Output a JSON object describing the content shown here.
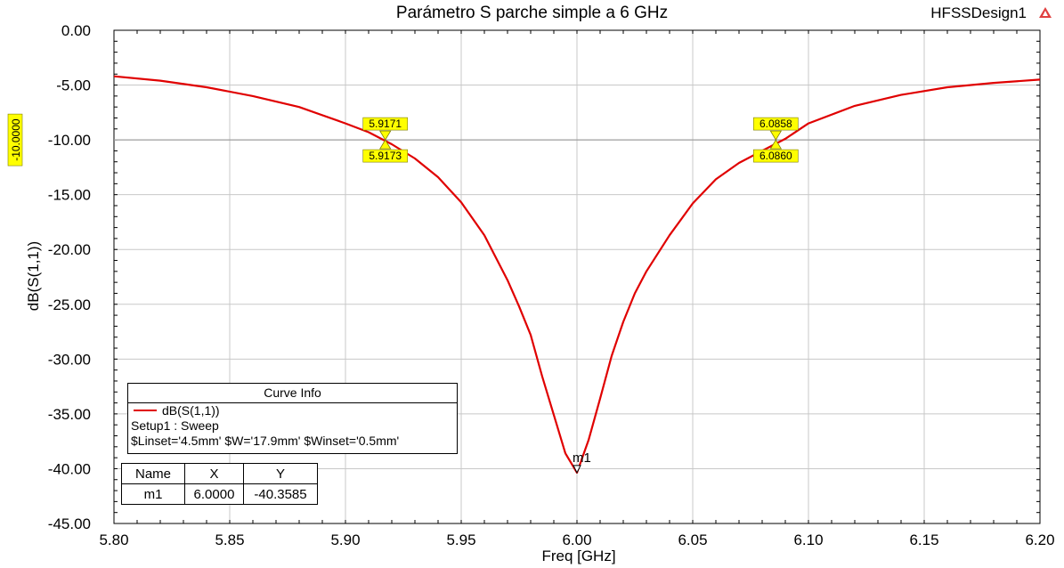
{
  "app_name": "HFSSDesign1",
  "icons": {
    "app": "ansys-logo-icon"
  },
  "colors": {
    "curve": "#e00000",
    "marker_fill": "#ffff00",
    "grid": "#c8c8c8",
    "ref_line": "#a0a0a0"
  },
  "chart_data": {
    "type": "line",
    "title": "Parámetro S parche simple a 6 GHz",
    "xlabel": "Freq [GHz]",
    "ylabel": "dB(S(1,1))",
    "xlim": [
      5.8,
      6.2
    ],
    "ylim": [
      -45,
      0
    ],
    "grid": true,
    "x_ticks": [
      "5.80",
      "5.85",
      "5.90",
      "5.95",
      "6.00",
      "6.05",
      "6.10",
      "6.15",
      "6.20"
    ],
    "y_ticks": [
      "0.00",
      "-5.00",
      "-10.00",
      "-15.00",
      "-20.00",
      "-25.00",
      "-30.00",
      "-35.00",
      "-40.00",
      "-45.00"
    ],
    "series": [
      {
        "name": "dB(S(1,1))",
        "x": [
          5.8,
          5.82,
          5.84,
          5.86,
          5.88,
          5.9,
          5.91,
          5.92,
          5.93,
          5.94,
          5.95,
          5.96,
          5.97,
          5.975,
          5.98,
          5.985,
          5.99,
          5.995,
          6.0,
          6.005,
          6.01,
          6.015,
          6.02,
          6.025,
          6.03,
          6.04,
          6.05,
          6.06,
          6.07,
          6.08,
          6.09,
          6.1,
          6.12,
          6.14,
          6.16,
          6.18,
          6.2
        ],
        "y": [
          -4.2,
          -4.6,
          -5.2,
          -6.0,
          -7.0,
          -8.5,
          -9.3,
          -10.4,
          -11.7,
          -13.4,
          -15.7,
          -18.7,
          -22.8,
          -25.2,
          -27.8,
          -31.6,
          -35.1,
          -38.6,
          -40.36,
          -37.4,
          -33.6,
          -29.7,
          -26.6,
          -24.0,
          -22.0,
          -18.7,
          -15.8,
          -13.6,
          -12.1,
          -11.0,
          -9.9,
          -8.5,
          -6.9,
          -5.9,
          -5.2,
          -4.8,
          -4.5
        ]
      }
    ],
    "reference_line": {
      "y": -10.0,
      "label": "-10.0000"
    },
    "crossings": [
      {
        "x": 5.9172,
        "y": -10.0,
        "label_top": "5.9171",
        "label_bottom": "5.9173"
      },
      {
        "x": 6.0859,
        "y": -10.0,
        "label_top": "6.0858",
        "label_bottom": "6.0860"
      }
    ],
    "marker": {
      "name": "m1",
      "x": 6.0,
      "y": -40.3585
    }
  },
  "curve_info": {
    "header": "Curve Info",
    "trace_name": "dB(S(1,1))",
    "setup": "Setup1 : Sweep",
    "params": "$Linset='4.5mm' $W='17.9mm' $Winset='0.5mm'"
  },
  "marker_table": {
    "headers": [
      "Name",
      "X",
      "Y"
    ],
    "row": [
      "m1",
      "6.0000",
      "-40.3585"
    ]
  }
}
